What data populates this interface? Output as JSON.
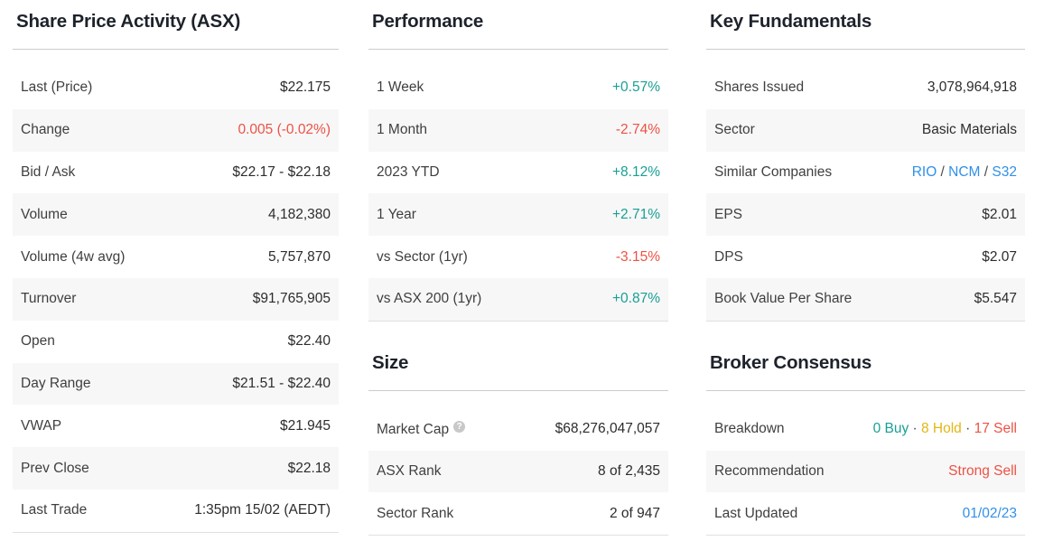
{
  "colors": {
    "positive": "#18a095",
    "negative": "#ee5145",
    "hold": "#e2b616",
    "link": "#3090e8",
    "stripe": "#f7f7f7",
    "heading": "#1d222b",
    "label": "#3f3f3f",
    "value": "#2c2c2c",
    "rule": "#cccccc",
    "rulelight": "#e0e0e0"
  },
  "ui": {
    "help_icon_glyph": "?",
    "link_separator": "/",
    "parts_separator": "·"
  },
  "sections": {
    "share_price_activity": {
      "title": "Share Price Activity (ASX)",
      "rows": [
        {
          "label": "Last (Price)",
          "value": "$22.175"
        },
        {
          "label": "Change",
          "value": "0.005 (-0.02%)",
          "color": "negative"
        },
        {
          "label": "Bid / Ask",
          "value": "$22.17 - $22.18"
        },
        {
          "label": "Volume",
          "value": "4,182,380"
        },
        {
          "label": "Volume (4w avg)",
          "value": "5,757,870"
        },
        {
          "label": "Turnover",
          "value": "$91,765,905"
        },
        {
          "label": "Open",
          "value": "$22.40"
        },
        {
          "label": "Day Range",
          "value": "$21.51 - $22.40"
        },
        {
          "label": "VWAP",
          "value": "$21.945"
        },
        {
          "label": "Prev Close",
          "value": "$22.18"
        },
        {
          "label": "Last Trade",
          "value": "1:35pm 15/02 (AEDT)"
        }
      ]
    },
    "performance": {
      "title": "Performance",
      "rows": [
        {
          "label": "1 Week",
          "value": "+0.57%",
          "color": "positive"
        },
        {
          "label": "1 Month",
          "value": "-2.74%",
          "color": "negative"
        },
        {
          "label": "2023 YTD",
          "value": "+8.12%",
          "color": "positive"
        },
        {
          "label": "1 Year",
          "value": "+2.71%",
          "color": "positive"
        },
        {
          "label": "vs Sector (1yr)",
          "value": "-3.15%",
          "color": "negative"
        },
        {
          "label": "vs ASX 200 (1yr)",
          "value": "+0.87%",
          "color": "positive"
        }
      ]
    },
    "size": {
      "title": "Size",
      "rows": [
        {
          "label": "Market Cap",
          "value": "$68,276,047,057",
          "help": true
        },
        {
          "label": "ASX Rank",
          "value": "8 of 2,435"
        },
        {
          "label": "Sector Rank",
          "value": "2 of 947"
        }
      ]
    },
    "key_fundamentals": {
      "title": "Key Fundamentals",
      "rows": [
        {
          "label": "Shares Issued",
          "value": "3,078,964,918"
        },
        {
          "label": "Sector",
          "value": "Basic Materials"
        },
        {
          "label": "Similar Companies",
          "links": [
            "RIO",
            "NCM",
            "S32"
          ]
        },
        {
          "label": "EPS",
          "value": "$2.01"
        },
        {
          "label": "DPS",
          "value": "$2.07"
        },
        {
          "label": "Book Value Per Share",
          "value": "$5.547"
        }
      ]
    },
    "broker_consensus": {
      "title": "Broker Consensus",
      "rows": [
        {
          "label": "Breakdown",
          "parts": [
            {
              "text": "0 Buy",
              "color": "positive"
            },
            {
              "text": "8 Hold",
              "color": "hold"
            },
            {
              "text": "17 Sell",
              "color": "negative"
            }
          ]
        },
        {
          "label": "Recommendation",
          "value": "Strong Sell",
          "color": "negative"
        },
        {
          "label": "Last Updated",
          "value": "01/02/23",
          "link": true
        }
      ]
    }
  }
}
